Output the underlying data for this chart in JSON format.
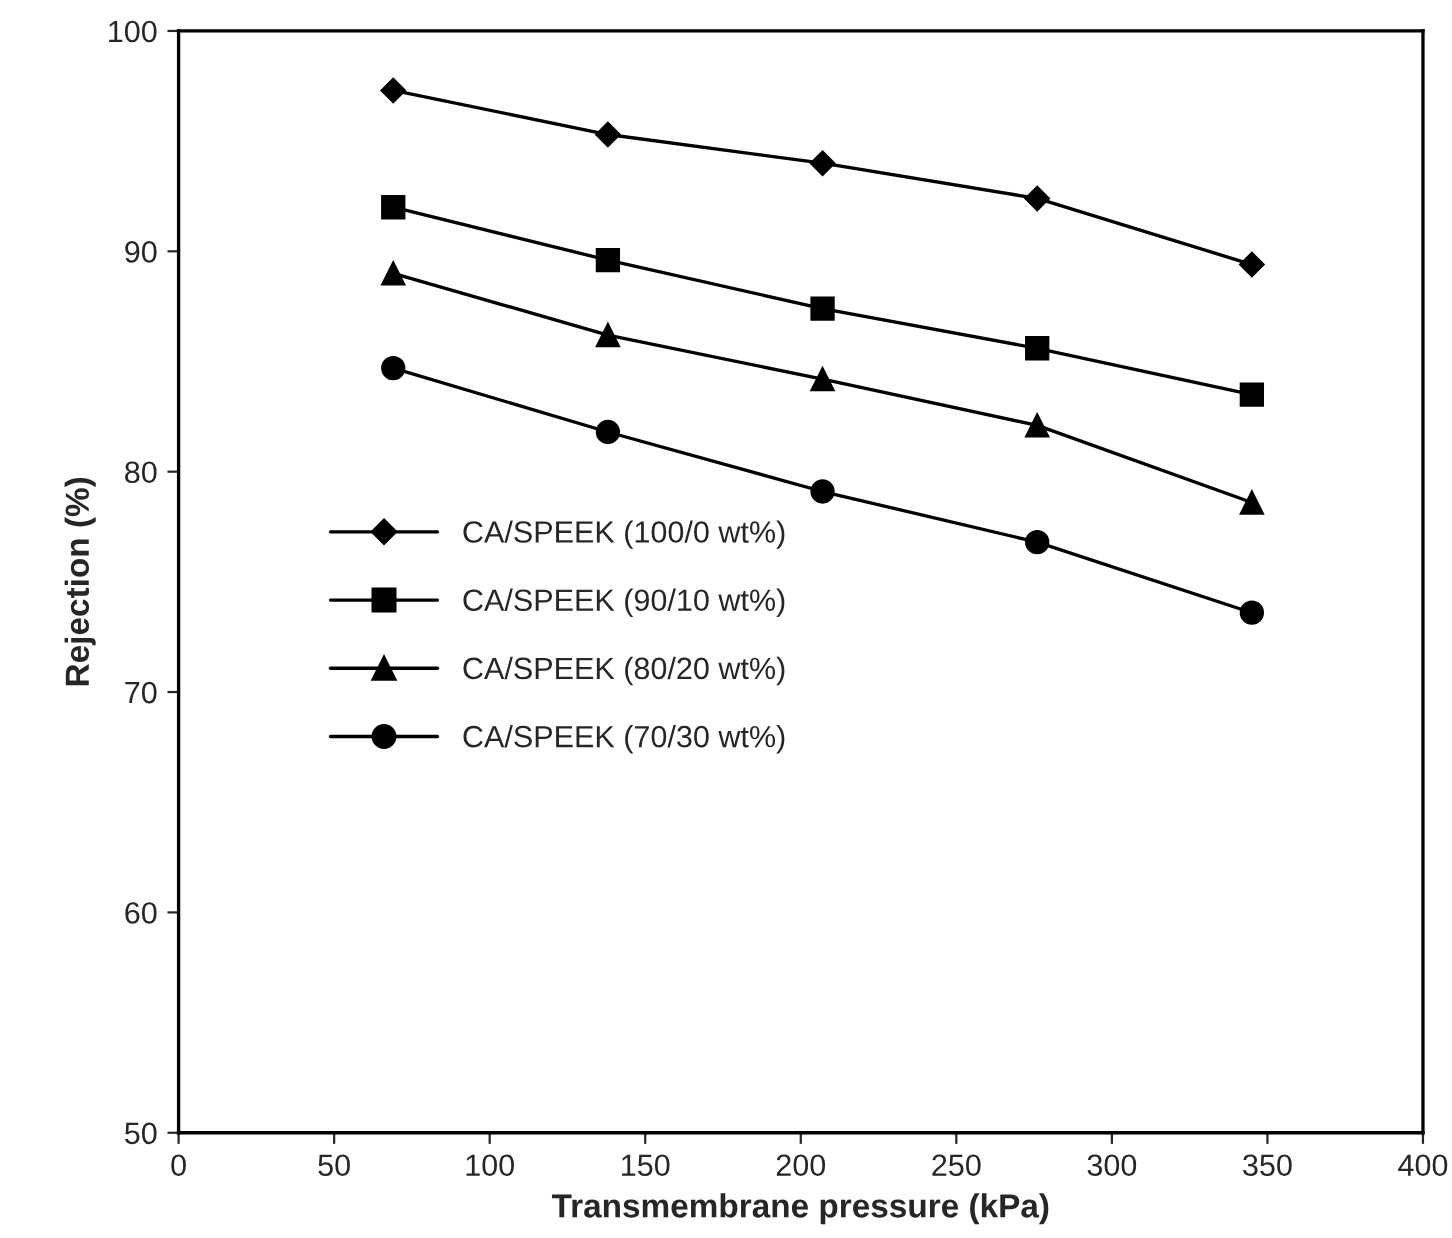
{
  "chart_data": {
    "type": "line",
    "xlabel": "Transmembrane pressure (kPa)",
    "ylabel": "Rejection (%)",
    "x": [
      69,
      138,
      207,
      276,
      345
    ],
    "series": [
      {
        "name": "CA/SPEEK (100/0 wt%)",
        "color": "#000000",
        "marker": "diamond",
        "values": [
          97.3,
          95.3,
          94.0,
          92.4,
          89.4
        ]
      },
      {
        "name": "CA/SPEEK (90/10 wt%)",
        "color": "#000000",
        "marker": "square",
        "values": [
          92.0,
          89.6,
          87.4,
          85.6,
          83.5
        ]
      },
      {
        "name": "CA/SPEEK (80/20 wt%)",
        "color": "#000000",
        "marker": "triangle",
        "values": [
          89.0,
          86.2,
          84.2,
          82.1,
          78.6
        ]
      },
      {
        "name": "CA/SPEEK (70/30 wt%)",
        "color": "#000000",
        "marker": "circle",
        "values": [
          84.7,
          81.8,
          79.1,
          76.8,
          73.6
        ]
      }
    ],
    "xlim": [
      0,
      400
    ],
    "xticks": [
      0,
      50,
      100,
      150,
      200,
      250,
      300,
      350,
      400
    ],
    "ylim": [
      50,
      100
    ],
    "yticks": [
      50,
      60,
      70,
      80,
      90,
      100
    ],
    "grid": false,
    "legend": "left",
    "line_style": "solid"
  }
}
